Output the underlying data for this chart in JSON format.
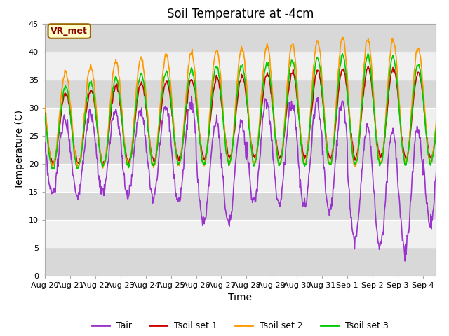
{
  "title": "Soil Temperature at -4cm",
  "xlabel": "Time",
  "ylabel": "Temperature (C)",
  "ylim": [
    0,
    45
  ],
  "yticks": [
    0,
    5,
    10,
    15,
    20,
    25,
    30,
    35,
    40,
    45
  ],
  "xlim_days": 15.5,
  "annotation_text": "VR_met",
  "annotation_color": "#8B0000",
  "annotation_bg": "#FFFFCC",
  "line_colors": {
    "Tair": "#9933CC",
    "Tsoil1": "#CC0000",
    "Tsoil2": "#FF9900",
    "Tsoil3": "#00CC00"
  },
  "legend_labels": [
    "Tair",
    "Tsoil set 1",
    "Tsoil set 2",
    "Tsoil set 3"
  ],
  "tick_labels": [
    "Aug 20",
    "Aug 21",
    "Aug 22",
    "Aug 23",
    "Aug 24",
    "Aug 25",
    "Aug 26",
    "Aug 27",
    "Aug 28",
    "Aug 29",
    "Aug 30",
    "Aug 31",
    "Sep 1",
    "Sep 2",
    "Sep 3",
    "Sep 4"
  ],
  "num_days": 16,
  "band_light": "#F0F0F0",
  "band_dark": "#D8D8D8",
  "fig_bg": "#FFFFFF"
}
